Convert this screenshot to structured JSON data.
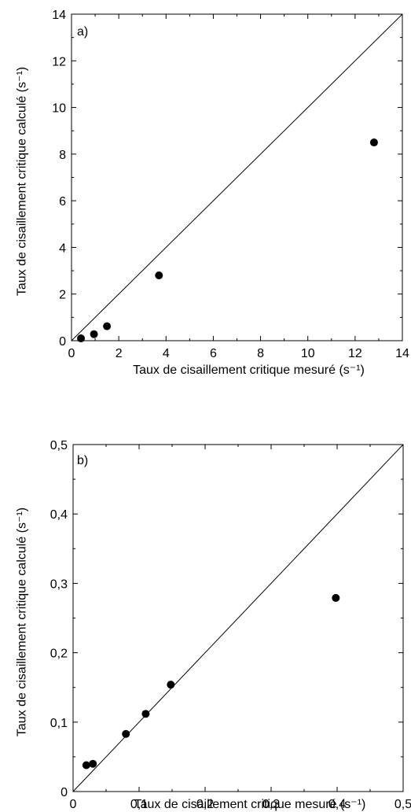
{
  "chart_data": [
    {
      "type": "scatter",
      "panel_label": "a)",
      "xlabel": "Taux de cisaillement critique mesuré (s⁻¹)",
      "ylabel": "Taux de cisaillement critique calculé (s⁻¹)",
      "xlim": [
        0,
        14
      ],
      "ylim": [
        0,
        14
      ],
      "xticks": [
        "0",
        "2",
        "4",
        "6",
        "8",
        "10",
        "12",
        "14"
      ],
      "yticks": [
        "0",
        "2",
        "4",
        "6",
        "8",
        "10",
        "12",
        "14"
      ],
      "xtick_values": [
        0,
        2,
        4,
        6,
        8,
        10,
        12,
        14
      ],
      "ytick_values": [
        0,
        2,
        4,
        6,
        8,
        10,
        12,
        14
      ],
      "reference_line": "y = x",
      "points": [
        {
          "x": 0.4,
          "y": 0.1
        },
        {
          "x": 0.95,
          "y": 0.28
        },
        {
          "x": 1.5,
          "y": 0.62
        },
        {
          "x": 3.7,
          "y": 2.8
        },
        {
          "x": 12.8,
          "y": 8.5
        }
      ]
    },
    {
      "type": "scatter",
      "panel_label": "b)",
      "xlabel": "Taux de cisaillement critique mesuré (s⁻¹)",
      "ylabel": "Taux de cisaillement critique calculé (s⁻¹)",
      "xlim": [
        0,
        0.5
      ],
      "ylim": [
        0,
        0.5
      ],
      "xticks": [
        "0",
        "0,1",
        "0,2",
        "0,3",
        "0,4",
        "0,5"
      ],
      "yticks": [
        "0",
        "0,1",
        "0,2",
        "0,3",
        "0,4",
        "0,5"
      ],
      "xtick_values": [
        0,
        0.1,
        0.2,
        0.3,
        0.4,
        0.5
      ],
      "ytick_values": [
        0,
        0.1,
        0.2,
        0.3,
        0.4,
        0.5
      ],
      "reference_line": "y = x",
      "points": [
        {
          "x": 0.02,
          "y": 0.038
        },
        {
          "x": 0.03,
          "y": 0.04
        },
        {
          "x": 0.08,
          "y": 0.083
        },
        {
          "x": 0.11,
          "y": 0.112
        },
        {
          "x": 0.148,
          "y": 0.154
        },
        {
          "x": 0.398,
          "y": 0.279
        }
      ]
    }
  ]
}
